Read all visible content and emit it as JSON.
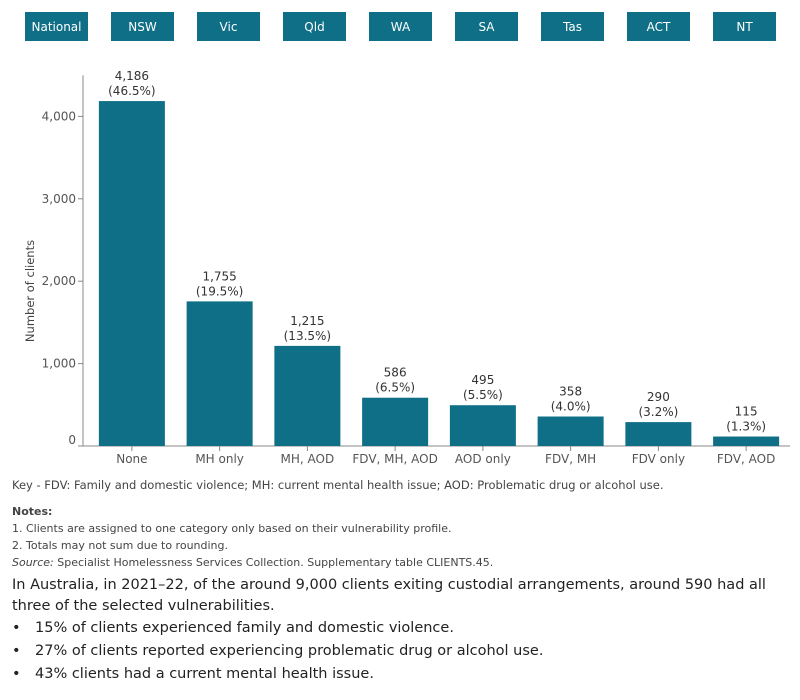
{
  "tabs": [
    "National",
    "NSW",
    "Vic",
    "Qld",
    "WA",
    "SA",
    "Tas",
    "ACT",
    "NT"
  ],
  "colors": {
    "bar": "#0f6f86",
    "tab_bg": "#0f6f86",
    "tab_text": "#ffffff",
    "axis": "#888888"
  },
  "chart_data": {
    "type": "bar",
    "categories": [
      "None",
      "MH only",
      "MH, AOD",
      "FDV, MH, AOD",
      "AOD only",
      "FDV, MH",
      "FDV only",
      "FDV, AOD"
    ],
    "values": [
      4186,
      1755,
      1215,
      586,
      495,
      358,
      290,
      115
    ],
    "value_labels": [
      "4,186",
      "1,755",
      "1,215",
      "586",
      "495",
      "358",
      "290",
      "115"
    ],
    "percent_labels": [
      "(46.5%)",
      "(19.5%)",
      "(13.5%)",
      "(6.5%)",
      "(5.5%)",
      "(4.0%)",
      "(3.2%)",
      "(1.3%)"
    ],
    "ylabel": "Number of clients",
    "ylim": [
      0,
      4500
    ],
    "yticks": [
      0,
      1000,
      2000,
      3000,
      4000
    ],
    "ytick_labels": [
      "0",
      "1,000",
      "2,000",
      "3,000",
      "4,000"
    ],
    "grid": false
  },
  "key": "Key - FDV: Family and domestic violence; MH: current mental health issue; AOD: Problematic drug or alcohol use.",
  "notes": {
    "title": "Notes:",
    "items": [
      "1. Clients are assigned to one category only based on their vulnerability profile.",
      "2. Totals may not sum due to rounding."
    ],
    "source_label": "Source:",
    "source_text": " Specialist Homelessness Services Collection. Supplementary table CLIENTS.45."
  },
  "summary": "In Australia, in 2021–22, of the around 9,000 clients exiting custodial arrangements, around 590 had all three of the selected vulnerabilities.",
  "bullets": [
    "15% of clients experienced family and domestic violence.",
    "27% of clients reported experiencing problematic drug or alcohol use.",
    "43% clients had a current mental health issue."
  ]
}
